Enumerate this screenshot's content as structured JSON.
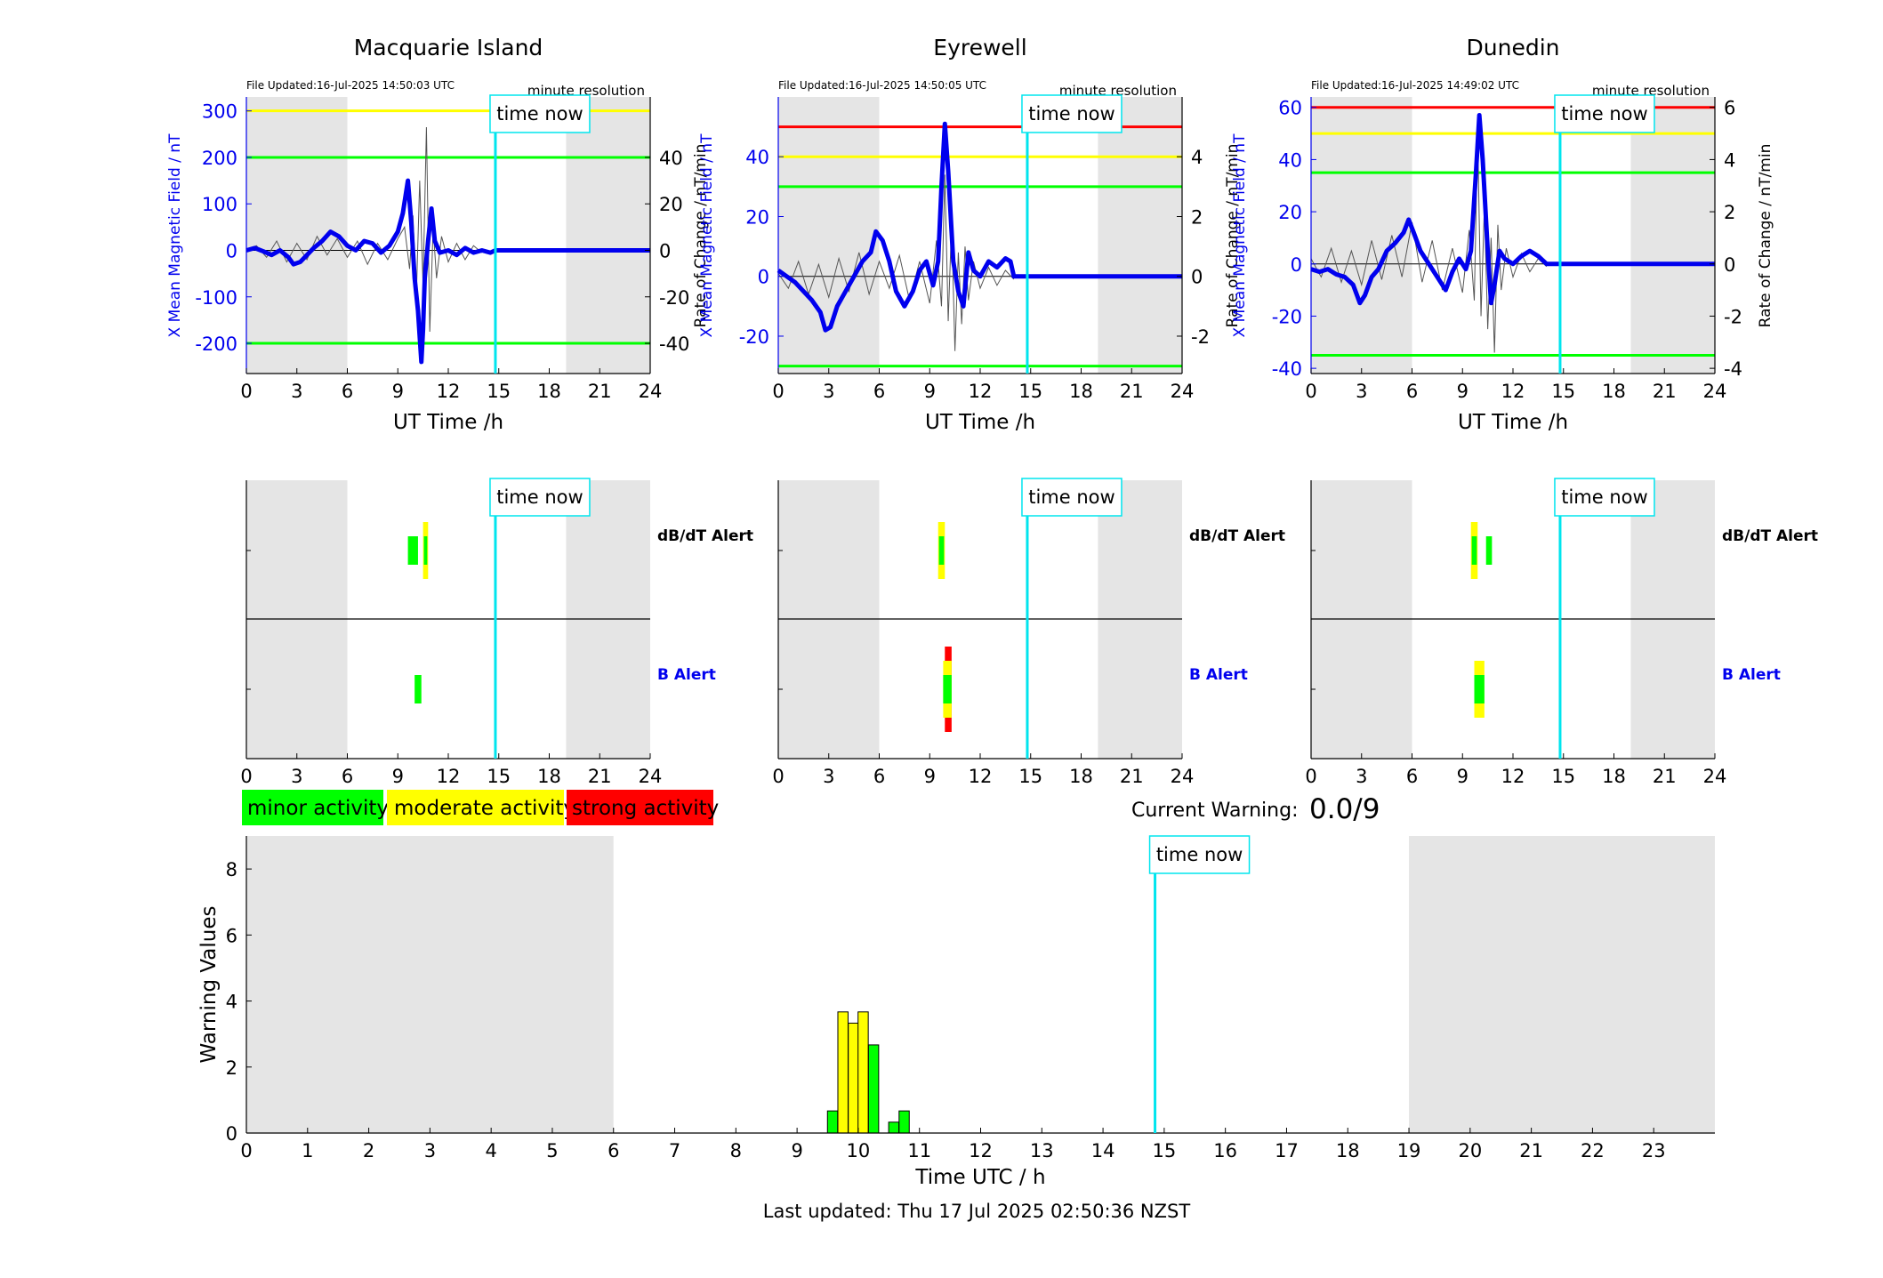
{
  "time_now_label": "time now",
  "current_warning": {
    "label": "Current Warning:",
    "value": "0.0/9"
  },
  "legend": [
    {
      "label": "minor activity",
      "color": "#00ff00"
    },
    {
      "label": "moderate activity",
      "color": "#ffff00"
    },
    {
      "label": "strong activity",
      "color": "#ff0000"
    }
  ],
  "last_updated": "Last updated: Thu 17 Jul 2025 02:50:36 NZST",
  "chart_data": [
    {
      "type": "line",
      "title": "Macquarie Island",
      "file_updated": "File Updated:16-Jul-2025 14:50:03 UTC",
      "resolution": "minute resolution",
      "xlabel": "UT Time /h",
      "ylabel": "X Mean Magnetic Field / nT",
      "y2label": "Rate of Change / nT/min",
      "xlim": [
        0,
        24
      ],
      "xticks": [
        0,
        3,
        6,
        9,
        12,
        15,
        18,
        21,
        24
      ],
      "ylim": [
        -265,
        330
      ],
      "yticks": [
        -200,
        -100,
        0,
        100,
        200,
        300
      ],
      "y2ticks": [
        -40,
        -20,
        0,
        20,
        40
      ],
      "night_bands": [
        [
          0,
          6
        ],
        [
          19,
          24
        ]
      ],
      "time_now": 14.8,
      "thresholds": [
        {
          "value": 300,
          "color": "#ffff00"
        },
        {
          "value": 200,
          "color": "#00ff00"
        },
        {
          "value": -200,
          "color": "#00ff00"
        }
      ],
      "series": [
        {
          "x": [
            0,
            0.5,
            1,
            1.5,
            2,
            2.5,
            2.8,
            3.2,
            3.6,
            4,
            4.5,
            5,
            5.5,
            6,
            6.5,
            7,
            7.5,
            8,
            8.5,
            9,
            9.3,
            9.6,
            9.8,
            10,
            10.2,
            10.4,
            10.5,
            10.6,
            10.8,
            11,
            11.2,
            11.5,
            12,
            12.5,
            13,
            13.5,
            14,
            14.5,
            14.8,
            15,
            24
          ],
          "y": [
            0,
            5,
            -2,
            -10,
            0,
            -15,
            -30,
            -25,
            -10,
            5,
            20,
            40,
            30,
            10,
            0,
            20,
            15,
            -5,
            10,
            40,
            80,
            150,
            60,
            -60,
            -130,
            -240,
            -170,
            -60,
            20,
            90,
            20,
            -5,
            0,
            -10,
            5,
            -5,
            0,
            -5,
            0,
            0,
            0
          ]
        },
        {
          "x": [
            0,
            0.6,
            1.2,
            1.8,
            2.4,
            3,
            3.6,
            4.2,
            4.8,
            5.4,
            6,
            6.6,
            7.2,
            7.8,
            8.4,
            9,
            9.4,
            9.7,
            9.9,
            10.1,
            10.3,
            10.5,
            10.7,
            10.9,
            11.1,
            11.3,
            11.6,
            12,
            12.5,
            13,
            13.5,
            14
          ],
          "y": [
            0,
            2,
            -3,
            4,
            -5,
            3,
            -4,
            6,
            -2,
            5,
            -3,
            4,
            -6,
            3,
            -4,
            5,
            10,
            -8,
            15,
            -20,
            30,
            -15,
            53,
            -35,
            10,
            -12,
            6,
            -5,
            3,
            -4,
            2,
            -1
          ]
        }
      ]
    },
    {
      "type": "line",
      "title": "Eyrewell",
      "file_updated": "File Updated:16-Jul-2025 14:50:05 UTC",
      "resolution": "minute resolution",
      "xlabel": "UT Time /h",
      "ylabel": "X Mean Magnetic Field / nT",
      "y2label": "Rate of Change / nT/min",
      "xlim": [
        0,
        24
      ],
      "xticks": [
        0,
        3,
        6,
        9,
        12,
        15,
        18,
        21,
        24
      ],
      "ylim": [
        -32.5,
        60
      ],
      "yticks": [
        -20,
        0,
        20,
        40
      ],
      "y2ticks": [
        -2,
        0,
        2,
        4
      ],
      "night_bands": [
        [
          0,
          6
        ],
        [
          19,
          24
        ]
      ],
      "time_now": 14.8,
      "thresholds": [
        {
          "value": 50,
          "color": "#ff0000"
        },
        {
          "value": 40,
          "color": "#ffff00"
        },
        {
          "value": 30,
          "color": "#00ff00"
        },
        {
          "value": -30,
          "color": "#00ff00"
        }
      ],
      "series": [
        {
          "x": [
            0,
            0.5,
            1,
            1.5,
            2,
            2.5,
            2.8,
            3.1,
            3.5,
            4,
            4.5,
            5,
            5.5,
            5.8,
            6.2,
            6.6,
            7,
            7.5,
            8,
            8.4,
            8.8,
            9.2,
            9.5,
            9.7,
            9.9,
            10.1,
            10.4,
            10.7,
            11,
            11.3,
            11.6,
            12,
            12.5,
            13,
            13.5,
            13.8,
            14,
            24
          ],
          "y": [
            2,
            0,
            -2,
            -5,
            -8,
            -12,
            -18,
            -17,
            -10,
            -5,
            0,
            5,
            8,
            15,
            12,
            5,
            -5,
            -10,
            -5,
            2,
            5,
            -3,
            5,
            30,
            51,
            35,
            5,
            -5,
            -10,
            8,
            2,
            0,
            5,
            3,
            6,
            5,
            0,
            0
          ]
        },
        {
          "x": [
            0,
            0.6,
            1.2,
            1.8,
            2.4,
            3,
            3.6,
            4.2,
            4.8,
            5.4,
            6,
            6.6,
            7.2,
            7.8,
            8.4,
            9,
            9.4,
            9.7,
            9.9,
            10.1,
            10.3,
            10.5,
            10.7,
            10.9,
            11.1,
            11.3,
            11.6,
            12,
            12.5,
            13,
            13.5,
            14
          ],
          "y": [
            0.1,
            -0.4,
            0.5,
            -0.6,
            0.4,
            -0.7,
            0.6,
            -0.5,
            0.8,
            -0.6,
            0.5,
            -0.4,
            0.7,
            -0.8,
            0.5,
            -0.9,
            1.2,
            -1.0,
            3.4,
            -1.5,
            1.8,
            -2.5,
            0.8,
            -1.6,
            1.0,
            -0.8,
            0.5,
            -0.4,
            0.3,
            -0.3,
            0.2,
            -0.1
          ]
        }
      ]
    },
    {
      "type": "line",
      "title": "Dunedin",
      "file_updated": "File Updated:16-Jul-2025 14:49:02 UTC",
      "resolution": "minute resolution",
      "xlabel": "UT Time /h",
      "ylabel": "X Mean Magnetic Field / nT",
      "y2label": "Rate of Change / nT/min",
      "xlim": [
        0,
        24
      ],
      "xticks": [
        0,
        3,
        6,
        9,
        12,
        15,
        18,
        21,
        24
      ],
      "ylim": [
        -42,
        64
      ],
      "yticks": [
        -40,
        -20,
        0,
        20,
        40,
        60
      ],
      "y2ticks": [
        -4,
        -2,
        0,
        2,
        4,
        6
      ],
      "night_bands": [
        [
          0,
          6
        ],
        [
          19,
          24
        ]
      ],
      "time_now": 14.8,
      "thresholds": [
        {
          "value": 60,
          "color": "#ff0000"
        },
        {
          "value": 50,
          "color": "#ffff00"
        },
        {
          "value": 35,
          "color": "#00ff00"
        },
        {
          "value": -35,
          "color": "#00ff00"
        }
      ],
      "series": [
        {
          "x": [
            0,
            0.5,
            1,
            1.5,
            2,
            2.5,
            2.9,
            3.2,
            3.6,
            4,
            4.5,
            5,
            5.5,
            5.8,
            6.1,
            6.5,
            7,
            7.5,
            8,
            8.4,
            8.8,
            9.2,
            9.5,
            9.8,
            10,
            10.2,
            10.5,
            10.7,
            10.9,
            11.2,
            11.5,
            12,
            12.5,
            13,
            13.5,
            14,
            14.2,
            24
          ],
          "y": [
            -2,
            -3,
            -2,
            -4,
            -5,
            -8,
            -15,
            -12,
            -5,
            -2,
            5,
            8,
            12,
            17,
            12,
            5,
            0,
            -5,
            -10,
            -3,
            2,
            -2,
            5,
            35,
            57,
            40,
            5,
            -15,
            -8,
            5,
            2,
            0,
            3,
            5,
            3,
            0,
            0,
            0
          ]
        },
        {
          "x": [
            0,
            0.6,
            1.2,
            1.8,
            2.4,
            3,
            3.6,
            4.2,
            4.8,
            5.4,
            6,
            6.6,
            7.2,
            7.8,
            8.4,
            9,
            9.4,
            9.7,
            9.9,
            10.1,
            10.3,
            10.5,
            10.7,
            10.9,
            11.1,
            11.3,
            11.6,
            12,
            12.5,
            13,
            13.5,
            14
          ],
          "y": [
            0.2,
            -0.5,
            0.6,
            -0.7,
            0.5,
            -0.8,
            0.9,
            -0.6,
            1.1,
            -0.5,
            1.6,
            -0.7,
            0.9,
            -1.0,
            0.6,
            -1.1,
            1.3,
            -1.4,
            5.0,
            -2.0,
            2.2,
            -2.5,
            1.0,
            -3.4,
            1.5,
            -1.0,
            0.6,
            -0.5,
            0.4,
            -0.3,
            0.2,
            -0.1
          ]
        }
      ]
    },
    {
      "type": "bar",
      "title": "",
      "rows": [
        "dB/dT Alert",
        "B Alert"
      ],
      "xlim": [
        0,
        24
      ],
      "xticks": [
        0,
        3,
        6,
        9,
        12,
        15,
        18,
        21,
        24
      ],
      "night_bands": [
        [
          0,
          6
        ],
        [
          19,
          24
        ]
      ],
      "time_now": 14.8,
      "segments": [
        {
          "row": "dB/dT Alert",
          "from": 9.6,
          "to": 10.2,
          "level": "minor"
        },
        {
          "row": "dB/dT Alert",
          "from": 10.5,
          "to": 10.8,
          "level": "moderate"
        },
        {
          "row": "dB/dT Alert",
          "from": 10.55,
          "to": 10.75,
          "level": "minor"
        },
        {
          "row": "B Alert",
          "from": 10.0,
          "to": 10.4,
          "level": "minor"
        }
      ]
    },
    {
      "type": "bar",
      "title": "",
      "rows": [
        "dB/dT Alert",
        "B Alert"
      ],
      "xlim": [
        0,
        24
      ],
      "xticks": [
        0,
        3,
        6,
        9,
        12,
        15,
        18,
        21,
        24
      ],
      "night_bands": [
        [
          0,
          6
        ],
        [
          19,
          24
        ]
      ],
      "time_now": 14.8,
      "segments": [
        {
          "row": "dB/dT Alert",
          "from": 9.5,
          "to": 9.9,
          "level": "moderate"
        },
        {
          "row": "dB/dT Alert",
          "from": 9.55,
          "to": 9.85,
          "level": "minor"
        },
        {
          "row": "B Alert",
          "from": 9.9,
          "to": 10.3,
          "level": "strong"
        },
        {
          "row": "B Alert",
          "from": 9.8,
          "to": 10.3,
          "level": "moderate"
        },
        {
          "row": "B Alert",
          "from": 9.8,
          "to": 10.3,
          "level": "minor"
        }
      ]
    },
    {
      "type": "bar",
      "title": "",
      "rows": [
        "dB/dT Alert",
        "B Alert"
      ],
      "xlim": [
        0,
        24
      ],
      "xticks": [
        0,
        3,
        6,
        9,
        12,
        15,
        18,
        21,
        24
      ],
      "night_bands": [
        [
          0,
          6
        ],
        [
          19,
          24
        ]
      ],
      "time_now": 14.8,
      "segments": [
        {
          "row": "dB/dT Alert",
          "from": 9.5,
          "to": 9.9,
          "level": "moderate"
        },
        {
          "row": "dB/dT Alert",
          "from": 9.55,
          "to": 9.85,
          "level": "minor"
        },
        {
          "row": "dB/dT Alert",
          "from": 10.4,
          "to": 10.75,
          "level": "minor"
        },
        {
          "row": "B Alert",
          "from": 9.7,
          "to": 10.3,
          "level": "moderate"
        },
        {
          "row": "B Alert",
          "from": 9.7,
          "to": 10.3,
          "level": "minor"
        }
      ]
    },
    {
      "type": "bar",
      "title": "",
      "xlabel": "Time UTC / h",
      "ylabel": "Warning Values",
      "xlim": [
        0,
        24
      ],
      "xticks": [
        0,
        1,
        2,
        3,
        4,
        5,
        6,
        7,
        8,
        9,
        10,
        11,
        12,
        13,
        14,
        15,
        16,
        17,
        18,
        19,
        20,
        21,
        22,
        23
      ],
      "ylim": [
        0,
        9
      ],
      "yticks": [
        0,
        2,
        4,
        6,
        8
      ],
      "night_bands": [
        [
          0,
          6
        ],
        [
          19,
          24
        ]
      ],
      "time_now": 14.85,
      "bars": [
        {
          "x": 9.58,
          "value": 0.67,
          "level": "minor"
        },
        {
          "x": 9.75,
          "value": 3.67,
          "level": "moderate"
        },
        {
          "x": 9.92,
          "value": 3.33,
          "level": "moderate"
        },
        {
          "x": 10.08,
          "value": 3.67,
          "level": "moderate"
        },
        {
          "x": 10.25,
          "value": 2.67,
          "level": "minor"
        },
        {
          "x": 10.58,
          "value": 0.33,
          "level": "minor"
        },
        {
          "x": 10.75,
          "value": 0.67,
          "level": "minor"
        }
      ]
    }
  ]
}
